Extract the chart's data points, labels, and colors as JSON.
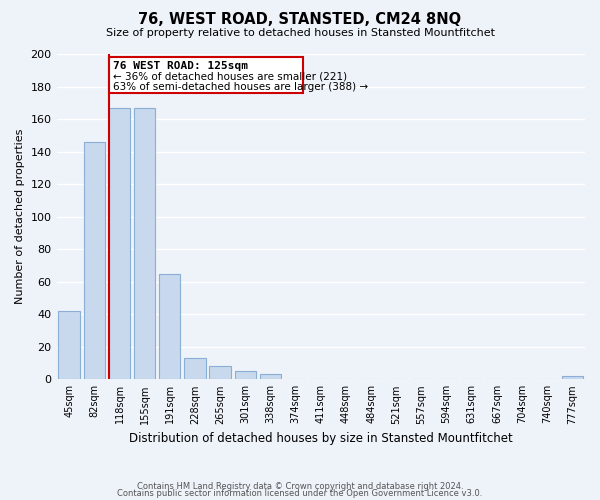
{
  "title": "76, WEST ROAD, STANSTED, CM24 8NQ",
  "subtitle": "Size of property relative to detached houses in Stansted Mountfitchet",
  "xlabel": "Distribution of detached houses by size in Stansted Mountfitchet",
  "ylabel": "Number of detached properties",
  "bar_labels": [
    "45sqm",
    "82sqm",
    "118sqm",
    "155sqm",
    "191sqm",
    "228sqm",
    "265sqm",
    "301sqm",
    "338sqm",
    "374sqm",
    "411sqm",
    "448sqm",
    "484sqm",
    "521sqm",
    "557sqm",
    "594sqm",
    "631sqm",
    "667sqm",
    "704sqm",
    "740sqm",
    "777sqm"
  ],
  "bar_values": [
    42,
    146,
    167,
    167,
    65,
    13,
    8,
    5,
    3,
    0,
    0,
    0,
    0,
    0,
    0,
    0,
    0,
    0,
    0,
    0,
    2
  ],
  "bar_color": "#c8d9ee",
  "bar_edge_color": "#8aaed4",
  "ref_line_color": "#cc0000",
  "ref_line_label": "76 WEST ROAD: 125sqm",
  "annotation_line1": "← 36% of detached houses are smaller (221)",
  "annotation_line2": "63% of semi-detached houses are larger (388) →",
  "box_color": "white",
  "box_edge_color": "#cc0000",
  "ylim": [
    0,
    200
  ],
  "yticks": [
    0,
    20,
    40,
    60,
    80,
    100,
    120,
    140,
    160,
    180,
    200
  ],
  "footer_line1": "Contains HM Land Registry data © Crown copyright and database right 2024.",
  "footer_line2": "Contains public sector information licensed under the Open Government Licence v3.0.",
  "bg_color": "#eef2f9",
  "grid_color": "#ffffff"
}
